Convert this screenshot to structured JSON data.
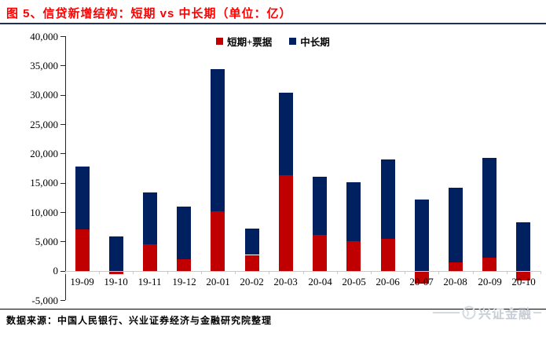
{
  "header": {
    "title": "图 5、信贷新增结构：短期 vs 中长期（单位：亿）"
  },
  "chart_data": {
    "type": "bar",
    "stacked": true,
    "categories": [
      "19-09",
      "19-10",
      "19-11",
      "19-12",
      "20-01",
      "20-02",
      "20-03",
      "20-04",
      "20-05",
      "20-06",
      "20-07",
      "20-08",
      "20-09",
      "20-10"
    ],
    "series": [
      {
        "name": "短期+票据",
        "color": "#c00000",
        "values": [
          7100,
          -400,
          4500,
          2000,
          10100,
          2700,
          16300,
          6100,
          5100,
          5400,
          -2000,
          1400,
          2200,
          -1500
        ]
      },
      {
        "name": "中长期",
        "color": "#002060",
        "values": [
          10700,
          5900,
          8900,
          8900,
          24300,
          4500,
          14100,
          9900,
          10000,
          13600,
          12100,
          12700,
          17000,
          8300
        ]
      }
    ],
    "title": "图 5、信贷新增结构：短期 vs 中长期（单位：亿）",
    "xlabel": "",
    "ylabel": "",
    "ylim": [
      -5000,
      40000
    ],
    "ytick_step": 5000,
    "legend_position": "top-center",
    "grid": false
  },
  "footer": {
    "source": "数据来源：中国人民银行、兴业证券经济与金融研究院整理",
    "watermark": "兴证金融"
  },
  "colors": {
    "title_red": "#ff0000",
    "bar_red": "#c00000",
    "bar_navy": "#002060",
    "rule_dark": "#1f2f55"
  }
}
